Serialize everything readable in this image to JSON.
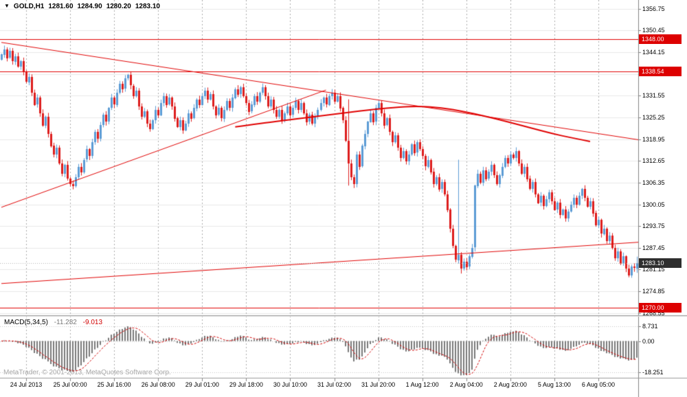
{
  "window": {
    "bg": "#ffffff"
  },
  "quote": {
    "marker": "▼",
    "symbol": "GOLD,H1",
    "open": "1281.60",
    "high": "1284.90",
    "low": "1280.20",
    "close": "1283.10"
  },
  "colors": {
    "bull": "#5b9bd5",
    "bear": "#dd1c1c",
    "wick_bull": "#5b9bd5",
    "wick_bear": "#dd1c1c",
    "grid_h": "#e8e8e8",
    "grid_v": "#a9a9a9",
    "object_red": "#e00000",
    "tag_red": "#dd0000",
    "tag_dark": "#2e2e2e",
    "macd_hist": "#787878",
    "macd_signal": "#d00000",
    "macd_grid": "#c4c4c4",
    "axis_line": "#808080",
    "separator": "#9a9a9a",
    "current_price_line": "#b0b0b0",
    "watermark": "#a6a6a6"
  },
  "axis": {
    "price_labels": [
      "1356.75",
      "1350.45",
      "1344.15",
      "1337.85",
      "1331.55",
      "1325.25",
      "1318.95",
      "1312.65",
      "1306.35",
      "1300.05",
      "1293.75",
      "1287.45",
      "1281.15",
      "1274.85",
      "1268.55"
    ],
    "price_tags": [
      {
        "text": "1348.00",
        "price": 1348.0,
        "style": "red"
      },
      {
        "text": "1338.54",
        "price": 1338.54,
        "style": "red"
      },
      {
        "text": "1283.10",
        "price": 1283.1,
        "style": "dark"
      },
      {
        "text": "1270.00",
        "price": 1270.0,
        "style": "red"
      }
    ],
    "time_labels": [
      {
        "text": "24 Jul 2013",
        "bar": 9
      },
      {
        "text": "25 Jul 00:00",
        "bar": 25
      },
      {
        "text": "25 Jul 16:00",
        "bar": 41
      },
      {
        "text": "26 Jul 08:00",
        "bar": 57
      },
      {
        "text": "29 Jul 01:00",
        "bar": 73
      },
      {
        "text": "29 Jul 18:00",
        "bar": 89
      },
      {
        "text": "30 Jul 10:00",
        "bar": 105
      },
      {
        "text": "31 Jul 02:00",
        "bar": 121
      },
      {
        "text": "31 Jul 20:00",
        "bar": 137
      },
      {
        "text": "1 Aug 12:00",
        "bar": 153
      },
      {
        "text": "2 Aug 04:00",
        "bar": 169
      },
      {
        "text": "2 Aug 20:00",
        "bar": 185
      },
      {
        "text": "5 Aug 13:00",
        "bar": 201
      },
      {
        "text": "6 Aug 05:00",
        "bar": 217
      }
    ]
  },
  "chart_data": {
    "type": "candlestick",
    "symbol": "GOLD",
    "timeframe": "H1",
    "last_bar": {
      "open": 1281.6,
      "high": 1284.9,
      "low": 1280.2,
      "close": 1283.1
    },
    "ylim": [
      1267.9,
      1359.3
    ],
    "grid_prices": [
      1356.75,
      1350.45,
      1344.15,
      1337.85,
      1331.55,
      1325.25,
      1318.95,
      1312.65,
      1306.35,
      1300.05,
      1293.75,
      1287.45,
      1281.15,
      1274.85,
      1268.55
    ],
    "closes": [
      1343.5,
      1345.0,
      1342.5,
      1344.5,
      1341.5,
      1343.0,
      1340.0,
      1341.5,
      1338.5,
      1335.5,
      1337.0,
      1332.5,
      1329.0,
      1331.0,
      1326.5,
      1323.0,
      1325.5,
      1320.5,
      1317.0,
      1314.5,
      1316.5,
      1312.0,
      1309.0,
      1311.5,
      1307.5,
      1306.0,
      1305.5,
      1308.0,
      1311.0,
      1309.5,
      1313.0,
      1316.0,
      1314.0,
      1318.0,
      1321.0,
      1319.0,
      1323.0,
      1326.0,
      1324.0,
      1328.0,
      1331.0,
      1329.0,
      1332.5,
      1335.0,
      1333.5,
      1336.5,
      1337.5,
      1334.5,
      1331.5,
      1333.0,
      1328.5,
      1325.5,
      1327.0,
      1323.5,
      1322.0,
      1324.5,
      1327.5,
      1326.0,
      1329.5,
      1331.5,
      1329.0,
      1331.0,
      1328.5,
      1325.0,
      1322.5,
      1324.5,
      1321.5,
      1323.5,
      1326.5,
      1325.0,
      1328.0,
      1330.5,
      1329.0,
      1331.5,
      1333.0,
      1330.5,
      1332.0,
      1328.5,
      1326.0,
      1328.0,
      1325.0,
      1327.5,
      1330.0,
      1328.0,
      1331.0,
      1333.5,
      1332.0,
      1334.0,
      1331.5,
      1329.5,
      1327.0,
      1329.0,
      1331.5,
      1330.0,
      1332.5,
      1334.0,
      1331.5,
      1328.5,
      1330.5,
      1327.5,
      1325.5,
      1327.5,
      1324.5,
      1326.5,
      1328.5,
      1326.0,
      1328.0,
      1330.0,
      1327.5,
      1329.5,
      1326.5,
      1324.0,
      1326.0,
      1323.5,
      1325.5,
      1327.5,
      1329.5,
      1331.0,
      1329.0,
      1331.5,
      1332.5,
      1330.0,
      1331.5,
      1328.0,
      1324.5,
      1318.5,
      1312.0,
      1308.0,
      1306.0,
      1314.5,
      1311.0,
      1317.0,
      1320.5,
      1324.0,
      1326.5,
      1324.0,
      1328.0,
      1329.5,
      1326.5,
      1323.0,
      1325.0,
      1321.0,
      1318.0,
      1320.0,
      1316.5,
      1313.5,
      1315.5,
      1312.5,
      1314.5,
      1317.5,
      1315.0,
      1318.0,
      1316.0,
      1314.0,
      1311.0,
      1313.0,
      1309.5,
      1306.0,
      1308.0,
      1304.5,
      1306.5,
      1303.0,
      1298.5,
      1293.0,
      1288.0,
      1284.0,
      1285.5,
      1281.5,
      1283.5,
      1282.0,
      1285.0,
      1287.5,
      1305.5,
      1309.0,
      1306.5,
      1310.0,
      1307.5,
      1309.5,
      1311.5,
      1308.5,
      1306.0,
      1308.5,
      1311.0,
      1313.5,
      1312.0,
      1314.5,
      1313.5,
      1315.5,
      1312.0,
      1309.0,
      1311.0,
      1307.5,
      1304.5,
      1306.5,
      1303.0,
      1300.5,
      1302.5,
      1299.5,
      1301.5,
      1303.5,
      1301.0,
      1298.5,
      1300.5,
      1297.0,
      1298.5,
      1296.0,
      1298.0,
      1300.0,
      1302.0,
      1300.0,
      1302.5,
      1304.5,
      1302.0,
      1299.5,
      1301.0,
      1297.5,
      1294.0,
      1295.5,
      1291.5,
      1293.0,
      1289.5,
      1291.0,
      1287.5,
      1284.5,
      1286.5,
      1283.0,
      1285.0,
      1281.5,
      1279.5,
      1282.0,
      1281.6,
      1283.1
    ],
    "wick_overrides": {
      "126": {
        "high": 1330.5,
        "low": 1305.5
      },
      "128": {
        "low": 1304.8
      },
      "166": {
        "high": 1313.0
      },
      "167": {
        "low": 1280.0
      },
      "231": {
        "open": 1281.6,
        "high": 1284.9,
        "low": 1280.2,
        "close": 1283.1
      }
    },
    "current_price": 1283.1,
    "lines": {
      "hlines": [
        {
          "price": 1348.0
        },
        {
          "price": 1338.54
        },
        {
          "price": 1270.0
        }
      ],
      "segments": [
        {
          "name": "descending-trendline",
          "from": [
            0,
            1347.0
          ],
          "to": [
            238,
            1318.0
          ],
          "width": 1
        },
        {
          "name": "ascending-trendline",
          "from": [
            0,
            1299.2
          ],
          "to": [
            118,
            1333.2
          ],
          "width": 1
        },
        {
          "name": "support-trendline",
          "from": [
            0,
            1277.1
          ],
          "to": [
            238,
            1289.4
          ],
          "width": 1
        }
      ],
      "ma_curve": {
        "bars": [
          85,
          95,
          105,
          115,
          125,
          135,
          145,
          152,
          160,
          168,
          176,
          184,
          192,
          200,
          207,
          214
        ],
        "prices": [
          1322.5,
          1323.6,
          1324.6,
          1325.6,
          1326.6,
          1327.6,
          1328.3,
          1328.5,
          1328.1,
          1327.0,
          1325.6,
          1324.0,
          1322.3,
          1320.6,
          1319.4,
          1318.3
        ],
        "width": 2
      }
    },
    "macd": {
      "label": "MACD(5,34,5)",
      "value": "-11.282",
      "signal_value": "-9.013",
      "fast": 5,
      "slow": 34,
      "signal_period": 5,
      "ylim": [
        -20.5,
        13.8
      ],
      "grid": [
        {
          "text": "8.731",
          "value": 8.731
        },
        {
          "text": "0.00",
          "value": 0.0
        },
        {
          "text": "-18.251",
          "value": -18.251
        }
      ]
    }
  },
  "watermark": "MetaTrader, © 2001-2013, MetaQuotes Software Corp."
}
